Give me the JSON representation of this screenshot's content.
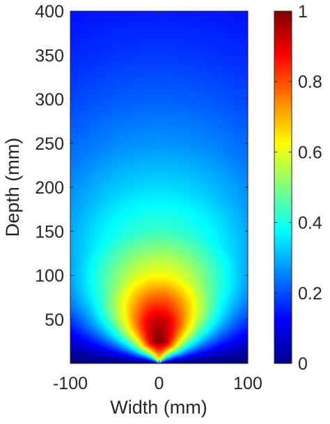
{
  "chart_data": {
    "type": "heatmap",
    "xlabel": "Width (mm)",
    "ylabel": "Depth (mm)",
    "xlim": [
      -100,
      100
    ],
    "ylim": [
      0,
      400
    ],
    "x_ticks": [
      -100,
      0,
      100
    ],
    "x_tick_labels": [
      "-100",
      "0",
      "100"
    ],
    "y_ticks": [
      50,
      100,
      150,
      200,
      250,
      300,
      350,
      400
    ],
    "y_tick_labels": [
      "50",
      "100",
      "150",
      "200",
      "250",
      "300",
      "350",
      "400"
    ],
    "colorbar": {
      "colormap": "jet",
      "range": [
        0,
        1
      ],
      "ticks": [
        0,
        0.2,
        0.4,
        0.6,
        0.8,
        1
      ],
      "tick_labels": [
        "0",
        "0.2",
        "0.4",
        "0.6",
        "0.8",
        "1"
      ]
    },
    "field": {
      "peak_value": 1,
      "peak_location": {
        "x": 0,
        "depth": 25
      },
      "center_profile_depth": [
        0,
        25,
        50,
        75,
        100,
        150,
        200,
        250,
        300,
        350,
        400
      ],
      "center_profile_value": [
        0.55,
        1.0,
        0.93,
        0.78,
        0.62,
        0.43,
        0.34,
        0.27,
        0.22,
        0.18,
        0.15
      ]
    }
  }
}
